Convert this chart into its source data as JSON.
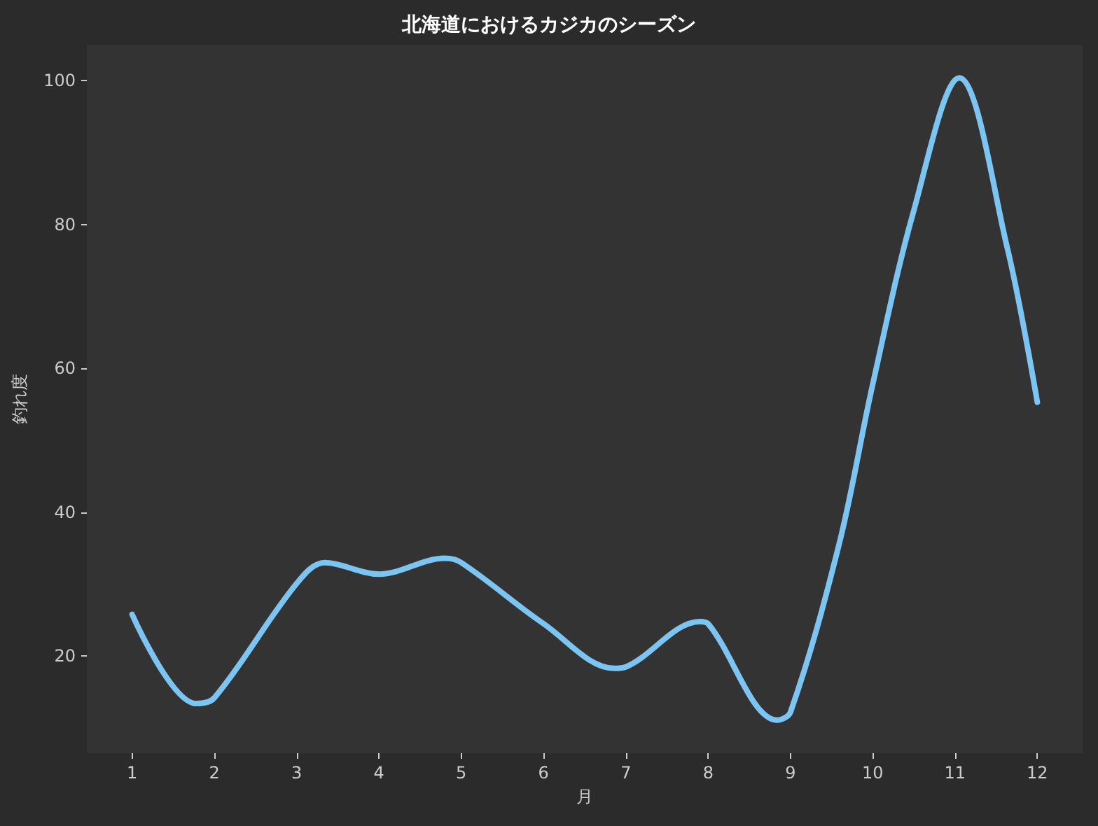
{
  "chart_data": {
    "type": "line",
    "title": "北海道におけるカジカのシーズン",
    "xlabel": "月",
    "ylabel": "釣れ度",
    "x": [
      1,
      1.78,
      2,
      3,
      3.34,
      4,
      4.8,
      5,
      6,
      6.86,
      7,
      7.9,
      8,
      8.84,
      9,
      9.59,
      10,
      10.5,
      11.05,
      11.63,
      12
    ],
    "series": [
      {
        "color": "#7cc4f2",
        "values": [
          25.8,
          13.4,
          14.2,
          30.1,
          33,
          31.4,
          33.6,
          33,
          24.5,
          18.3,
          18.5,
          24.8,
          24.5,
          11.1,
          12.2,
          35.5,
          57.8,
          82,
          100.4,
          77,
          55.3
        ]
      }
    ],
    "xlim": [
      0.45,
      12.55
    ],
    "xticks": [
      1,
      2,
      3,
      4,
      5,
      6,
      7,
      8,
      9,
      10,
      11,
      12
    ],
    "ylim": [
      6.5,
      105
    ],
    "yticks": [
      20,
      40,
      60,
      80,
      100
    ],
    "grid": false,
    "marker": "none",
    "line_style": "solid"
  }
}
